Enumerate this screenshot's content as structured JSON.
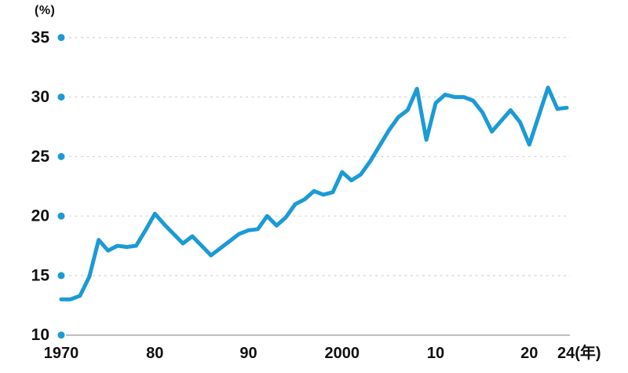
{
  "chart": {
    "unit_label": "(%)",
    "colors": {
      "line": "#1b9ad6",
      "dot": "#1b9ad6",
      "grid_dashed": "#d8d8d8",
      "axis_baseline": "#a9a9a9",
      "text": "#111111"
    }
  },
  "chart_data": {
    "type": "line",
    "title": "",
    "xlabel": "",
    "ylabel": "(%)",
    "ylim": [
      10,
      35
    ],
    "xlim": [
      1970,
      2024
    ],
    "grid": "horizontal-dashed",
    "legend": "none",
    "yticks": [
      10,
      15,
      20,
      25,
      30,
      35
    ],
    "xticks": [
      {
        "year": 1970,
        "label": "1970"
      },
      {
        "year": 1980,
        "label": "80"
      },
      {
        "year": 1990,
        "label": "90"
      },
      {
        "year": 2000,
        "label": "2000"
      },
      {
        "year": 2010,
        "label": "10"
      },
      {
        "year": 2020,
        "label": "20"
      },
      {
        "year": 2024,
        "label": "24(年)"
      }
    ],
    "x": [
      1970,
      1971,
      1972,
      1973,
      1974,
      1975,
      1976,
      1977,
      1978,
      1979,
      1980,
      1981,
      1982,
      1983,
      1984,
      1985,
      1986,
      1987,
      1988,
      1989,
      1990,
      1991,
      1992,
      1993,
      1994,
      1995,
      1996,
      1997,
      1998,
      1999,
      2000,
      2001,
      2002,
      2003,
      2004,
      2005,
      2006,
      2007,
      2008,
      2009,
      2010,
      2011,
      2012,
      2013,
      2014,
      2015,
      2016,
      2017,
      2018,
      2019,
      2020,
      2021,
      2022,
      2023,
      2024
    ],
    "values": [
      13.0,
      13.0,
      13.3,
      14.9,
      18.0,
      17.1,
      17.5,
      17.4,
      17.5,
      18.8,
      20.2,
      19.3,
      18.5,
      17.7,
      18.3,
      17.5,
      16.7,
      17.3,
      17.9,
      18.5,
      18.8,
      18.9,
      20.0,
      19.2,
      19.9,
      21.0,
      21.4,
      22.1,
      21.8,
      22.0,
      23.7,
      23.0,
      23.5,
      24.6,
      25.9,
      27.2,
      28.3,
      28.9,
      30.7,
      26.4,
      29.5,
      30.2,
      30.0,
      30.0,
      29.7,
      28.7,
      27.1,
      28.0,
      28.9,
      27.9,
      26.0,
      28.4,
      30.8,
      29.0,
      29.1
    ]
  }
}
